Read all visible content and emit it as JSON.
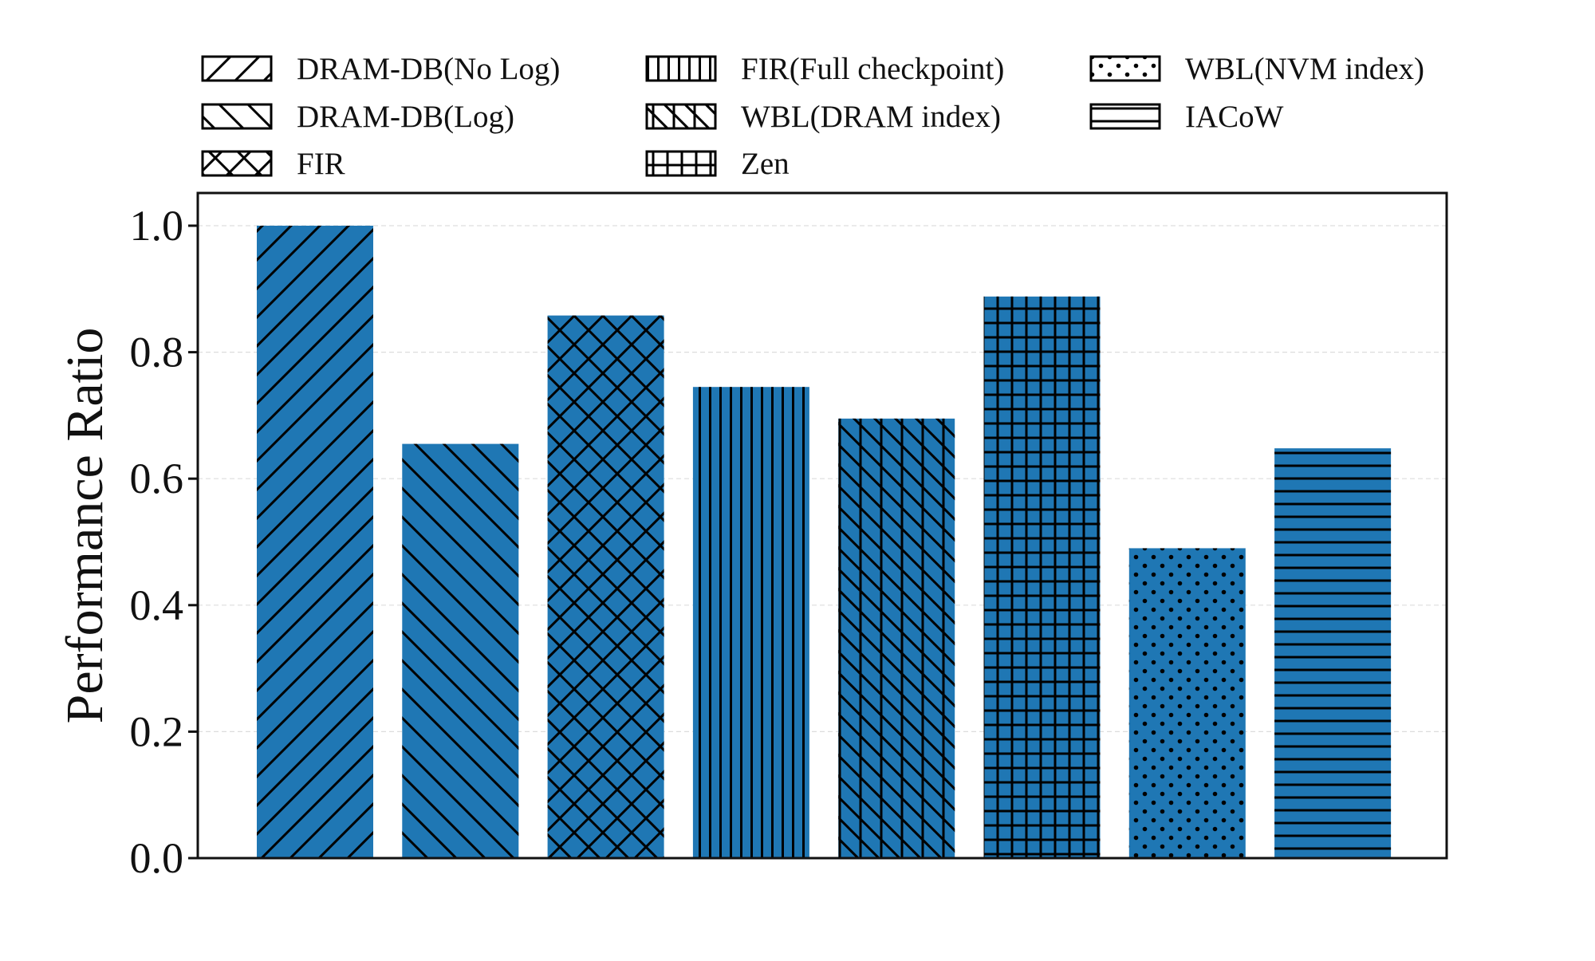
{
  "chart_data": {
    "type": "bar",
    "title": "",
    "xlabel": "",
    "ylabel": "Performance Ratio",
    "ylim": [
      0,
      1.05
    ],
    "yticks": [
      "0.0",
      "0.2",
      "0.4",
      "0.6",
      "0.8",
      "1.0"
    ],
    "ytick_values": [
      0,
      0.2,
      0.4,
      0.6,
      0.8,
      1.0
    ],
    "grid": true,
    "legend_position": "top",
    "bar_color": "#1f77b4",
    "series": [
      {
        "name": "DRAM-DB(No Log)",
        "value": 1.0,
        "hatch": "diag-up"
      },
      {
        "name": "DRAM-DB(Log)",
        "value": 0.655,
        "hatch": "diag-down"
      },
      {
        "name": "FIR",
        "value": 0.858,
        "hatch": "cross"
      },
      {
        "name": "FIR(Full checkpoint)",
        "value": 0.745,
        "hatch": "vertical"
      },
      {
        "name": "WBL(DRAM index)",
        "value": 0.695,
        "hatch": "vertical-diag"
      },
      {
        "name": "Zen",
        "value": 0.888,
        "hatch": "grid"
      },
      {
        "name": "WBL(NVM index)",
        "value": 0.49,
        "hatch": "dots"
      },
      {
        "name": "IACoW",
        "value": 0.648,
        "hatch": "horizontal"
      }
    ]
  }
}
